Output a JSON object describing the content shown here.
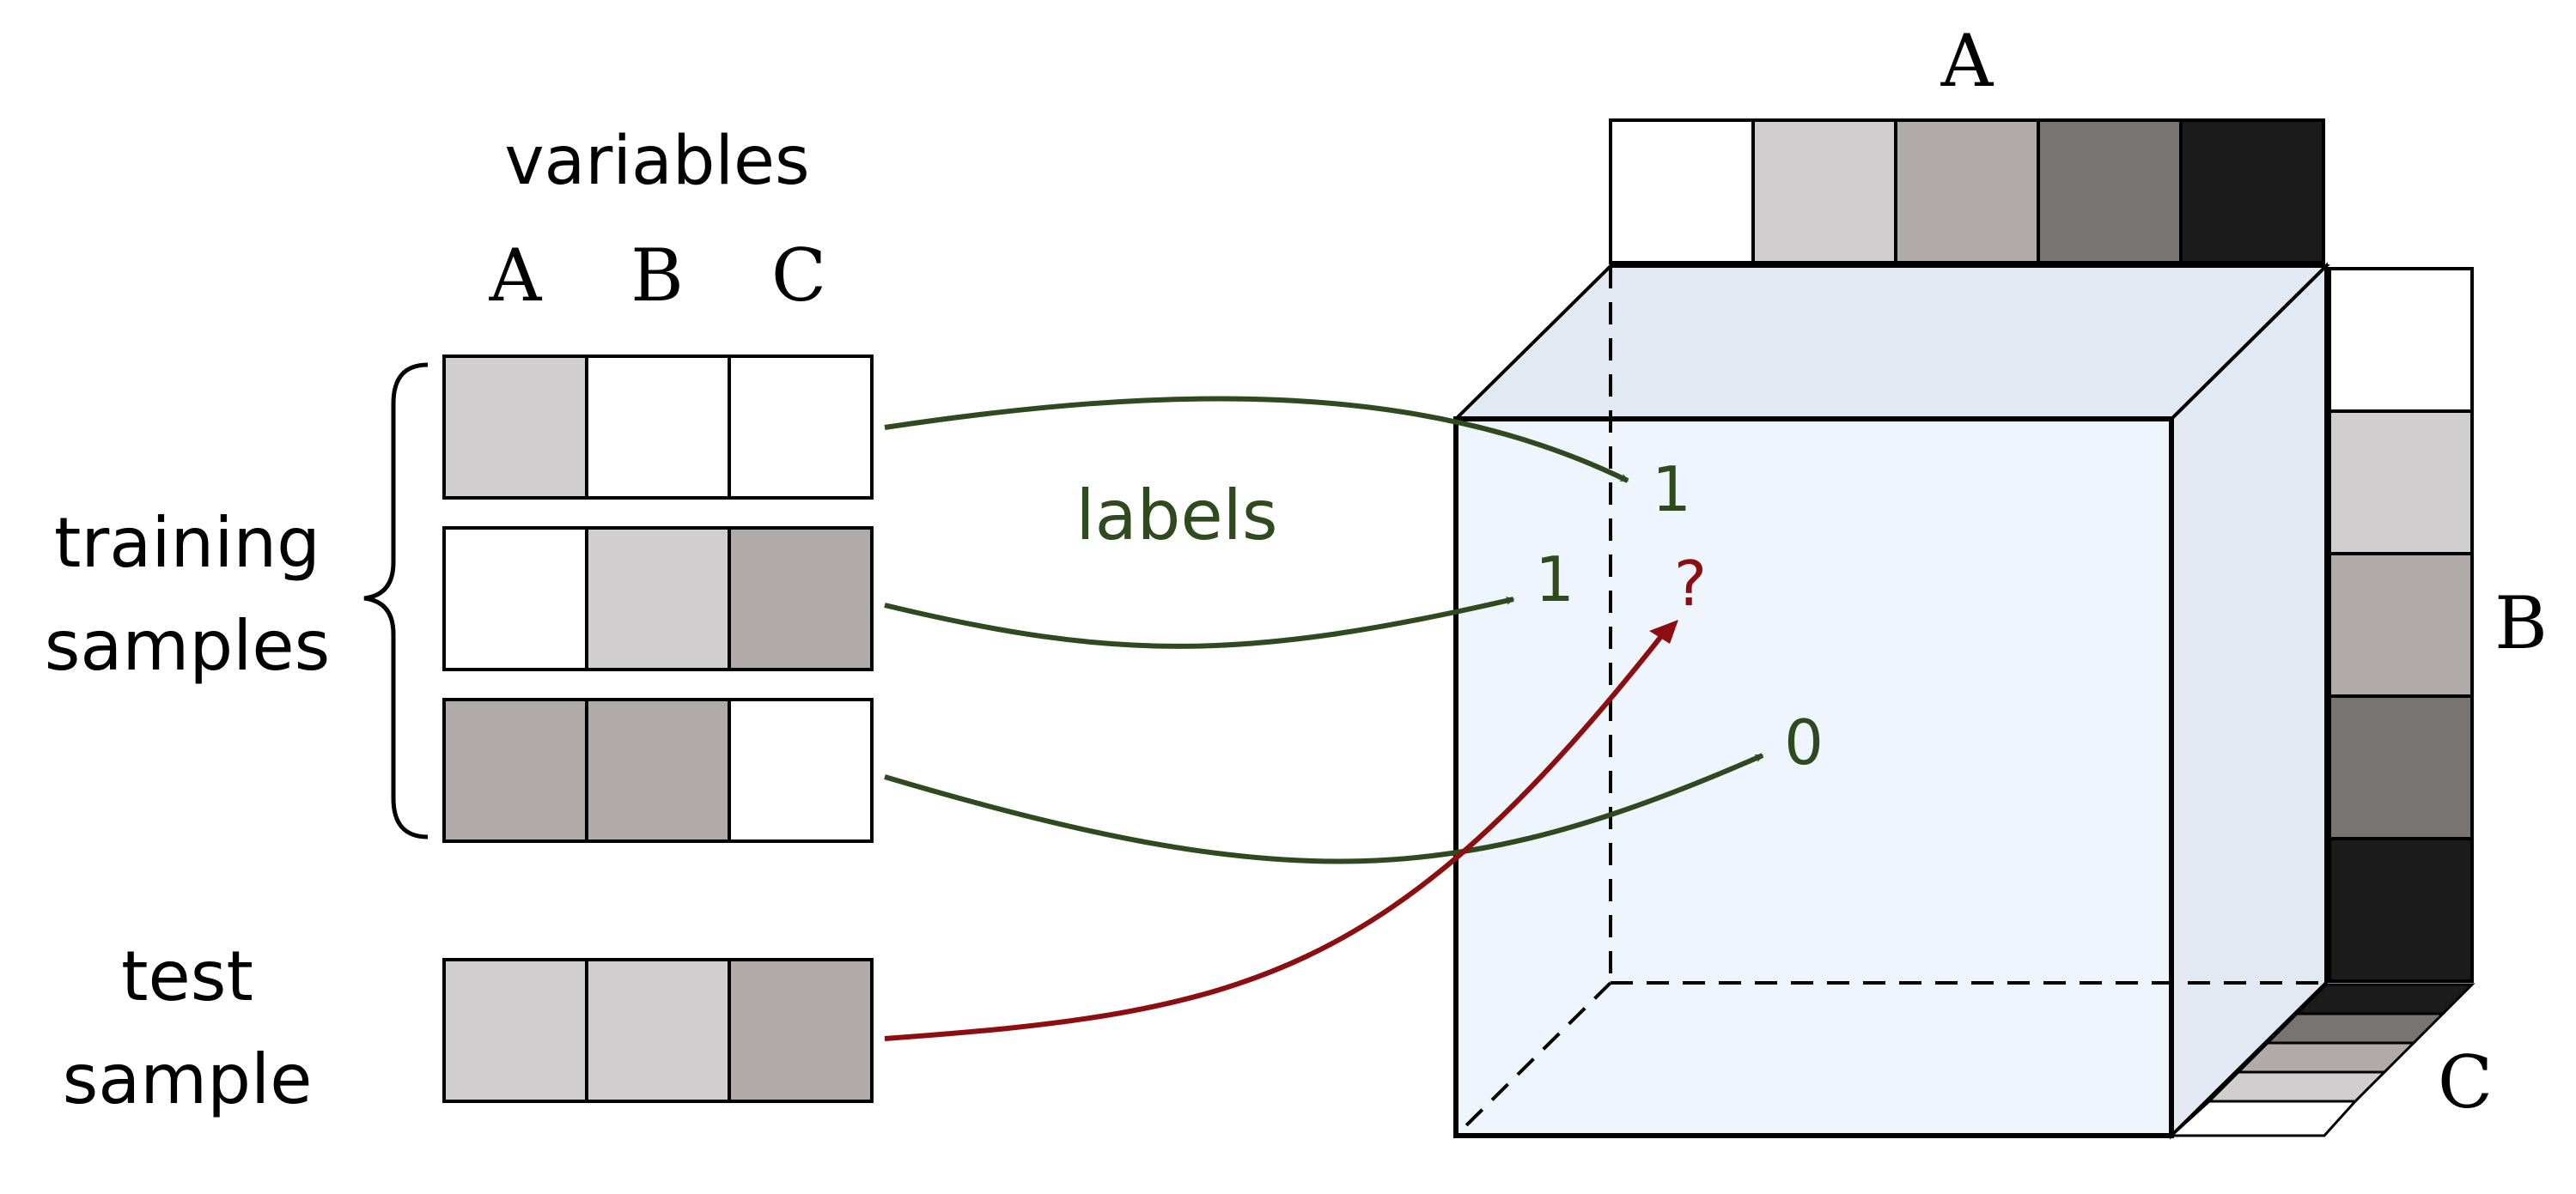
{
  "headers": {
    "variables": "variables",
    "columns": [
      "A",
      "B",
      "C"
    ]
  },
  "groups": {
    "training": [
      "training",
      "samples"
    ],
    "test": [
      "test",
      "sample"
    ]
  },
  "edge_label": "labels",
  "axes": {
    "a": "A",
    "b": "B",
    "c": "C"
  },
  "cube_labels": {
    "first": "1",
    "second": "1",
    "third": "0",
    "query": "?"
  },
  "colors": {
    "white": "#ffffff",
    "light": "#d0cecf",
    "mid": "#b0aaa9",
    "dark": "#787472",
    "black": "#1b1b1b",
    "cube_front": "#eef5fc",
    "cube_top": "#e2e9f2",
    "label_green": "#2f4a1f",
    "query_red": "#8c0e10"
  }
}
